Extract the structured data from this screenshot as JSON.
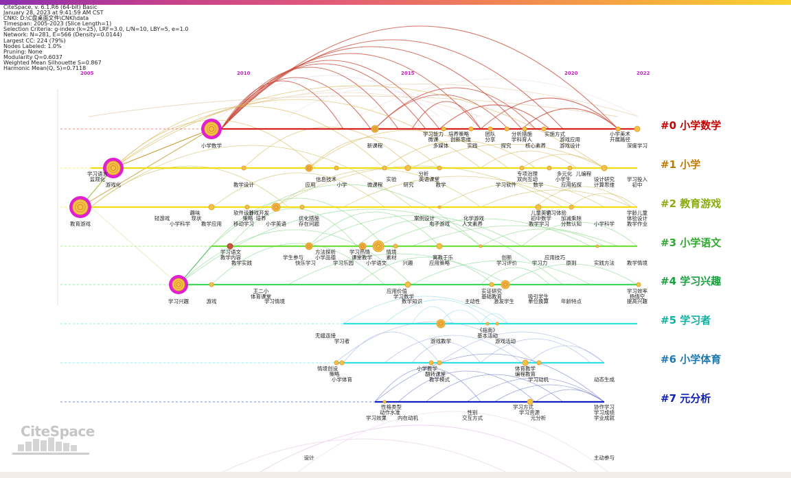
{
  "info_lines": [
    "CiteSpace, v. 6.1.R6 (64-bit) Basic",
    "January 28, 2023 at 9:41:59 AM CST",
    "CNKI: D:\\C盘桌面文件\\CNKI\\data",
    "Timespan: 2005-2023 (Slice Length=1)",
    "Selection Criteria: g-index (k=25), LRF=3.0, L/N=10, LBY=5, e=1.0",
    "Network: N=281, E=566 (Density=0.0144)",
    "Largest CC: 224 (79%)",
    "Nodes Labeled: 1.0%",
    "Pruning: None",
    "Modularity Q=0.6037",
    "Weighted Mean Silhouette S=0.867",
    "Harmonic Mean(Q, S)=0.7118"
  ],
  "years": [
    "2005",
    "2010",
    "2015",
    "2020",
    "2022"
  ],
  "logo_text": "CiteSpace",
  "clusters": [
    {
      "label": "#0 小学数学",
      "color": "#c00000",
      "line_color": "#d62020"
    },
    {
      "label": "#1 小学",
      "color": "#c07a00",
      "line_color": "#f2dd10"
    },
    {
      "label": "#2 教育游戏",
      "color": "#8aaa10",
      "line_color": "#f2dd10"
    },
    {
      "label": "#3 小学语文",
      "color": "#30a830",
      "line_color": "#6ee03a"
    },
    {
      "label": "#4 学习兴趣",
      "color": "#1aa040",
      "line_color": "#3fd85a"
    },
    {
      "label": "#5 学习者",
      "color": "#10b0a0",
      "line_color": "#30e0e0"
    },
    {
      "label": "#6 小学体育",
      "color": "#1c78b0",
      "line_color": "#30e0e0"
    },
    {
      "label": "#7 元分析",
      "color": "#1020b0",
      "line_color": "#1020c0"
    }
  ],
  "node_labels": [
    [
      "小学数学",
      "新课程",
      "学习能力",
      "微课",
      "培养策略",
      "多媒体",
      "创新思维",
      "实践",
      "团队",
      "分享",
      "探究",
      "分析措施",
      "学科育人",
      "核心素养",
      "实施方式",
      "游戏应用",
      "游戏设计",
      "小学美术",
      "开展路径",
      "深度学习"
    ],
    [
      "学习语言",
      "游戏化",
      "监观化",
      "教学设计",
      "信息技术",
      "应用",
      "小学",
      "微课程",
      "实验",
      "研究",
      "分析",
      "英语课堂",
      "教学",
      "专项治理",
      "双向互动",
      "学习软件",
      "数学",
      "多元化",
      "儿编程",
      "小学生",
      "应用拓探",
      "设计研究",
      "计算思维",
      "学习投入",
      "初中"
    ],
    [
      "教育游戏",
      "轻游戏",
      "小学科学",
      "趣味",
      "现状",
      "教学应用",
      "软件设计",
      "策略",
      "移动学习",
      "游戏开发",
      "培养",
      "小学英语",
      "优化措施",
      "存在问题",
      "案例设计",
      "电子游戏",
      "化学游戏",
      "人文素养",
      "儿童英语",
      "初中数学",
      "学习体验",
      "教学学习",
      "加减乘除",
      "分数认知",
      "小学科学",
      "学龄儿童",
      "体验设计",
      "教学作业"
    ],
    [
      "学习语文",
      "教学内容",
      "教学实践",
      "学生参与",
      "快乐学习",
      "方法探析",
      "小学品德",
      "学习乐园",
      "学习热情",
      "课堂教学",
      "小学语文",
      "情境",
      "素材",
      "兴趣",
      "寓教于乐",
      "应用策略",
      "创新",
      "学习评价",
      "学习力",
      "应用技巧",
      "原则",
      "实践方法",
      "教学情境"
    ],
    [
      "学习兴趣",
      "游戏",
      "王二小",
      "体育课堂",
      "学习情境",
      "应用价值",
      "学习数学",
      "数学知识",
      "主动性",
      "实证研究",
      "基础教育",
      "激发学生",
      "吸引学生",
      "单位换算",
      "年龄特点",
      "学习效率",
      "扬悟空",
      "提高兴趣"
    ],
    [
      "无缝连接",
      "学习者",
      "游戏教学",
      "《指南》",
      "基本活动",
      "游戏活动"
    ],
    [
      "情境创设",
      "策略",
      "小学体育",
      "小学教学",
      "翻转课堂",
      "教学模式",
      "体育教学",
      "编程教育",
      "学习动机",
      "动态生成"
    ],
    [
      "性格类型",
      "动作水准",
      "学习效果",
      "内在动机",
      "性别",
      "交互方式",
      "学习方式",
      "学习资源",
      "元分析",
      "协作学习",
      "学习成绩",
      "学业成就",
      "设计",
      "主动参与"
    ]
  ]
}
